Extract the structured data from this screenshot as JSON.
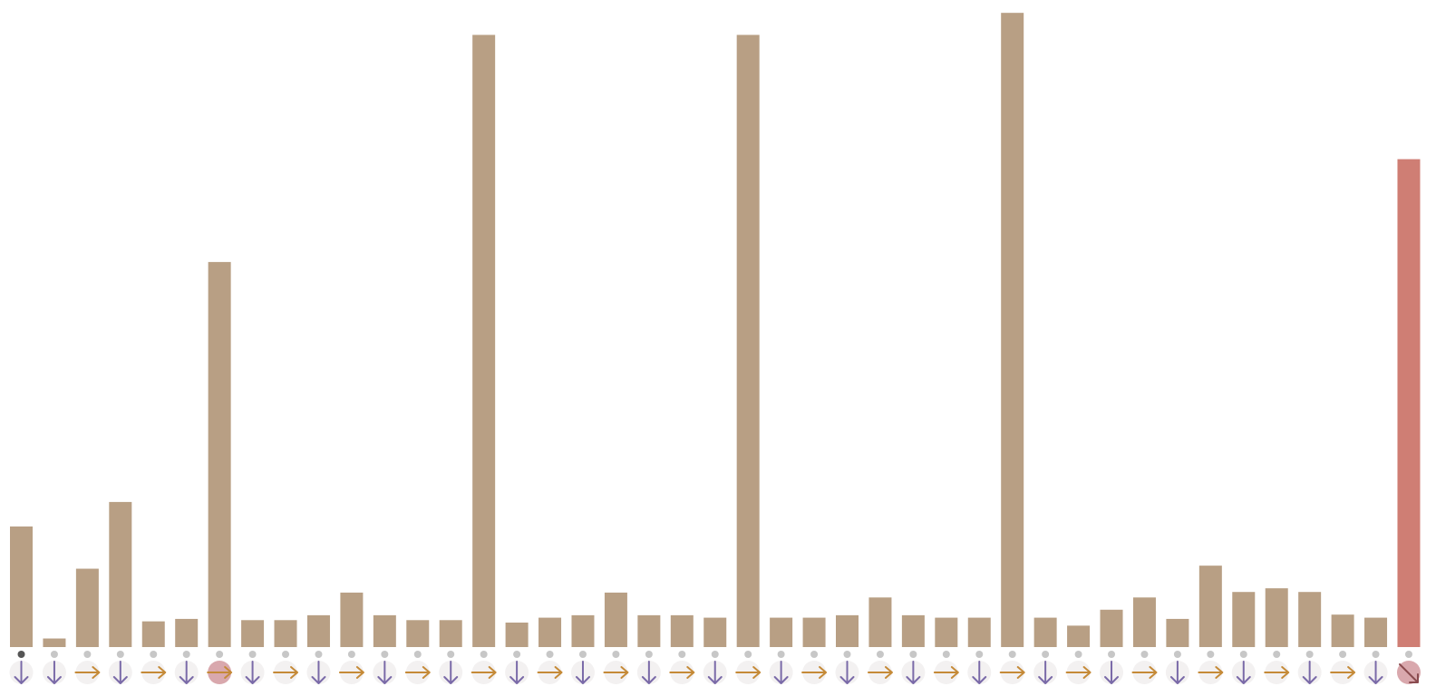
{
  "chart_data": {
    "type": "bar",
    "ylim": [
      0,
      100
    ],
    "grid": false,
    "legend": "none",
    "values": [
      19.7,
      1.4,
      12.8,
      23.7,
      4.2,
      4.6,
      62.9,
      4.4,
      4.4,
      5.2,
      8.9,
      5.2,
      4.4,
      4.4,
      100.0,
      4.0,
      4.8,
      5.2,
      8.9,
      5.2,
      5.2,
      4.8,
      100.0,
      4.8,
      4.8,
      5.2,
      8.1,
      5.2,
      4.8,
      4.8,
      103.6,
      4.8,
      3.5,
      6.1,
      8.1,
      4.6,
      13.3,
      9.0,
      9.6,
      9.0,
      5.3,
      4.8,
      79.7
    ],
    "highlight_index": 42,
    "markers": {
      "dots": [
        "dark",
        "light",
        "light",
        "light",
        "light",
        "light",
        "light",
        "light",
        "light",
        "light",
        "light",
        "light",
        "light",
        "light",
        "light",
        "light",
        "light",
        "light",
        "light",
        "light",
        "light",
        "light",
        "light",
        "light",
        "light",
        "light",
        "light",
        "light",
        "light",
        "light",
        "light",
        "light",
        "light",
        "light",
        "light",
        "light",
        "light",
        "light",
        "light",
        "light",
        "light",
        "light",
        "light"
      ],
      "arrows": [
        "down",
        "down",
        "right",
        "down",
        "right",
        "down",
        "right",
        "down",
        "right",
        "down",
        "right",
        "down",
        "right",
        "down",
        "right",
        "down",
        "right",
        "down",
        "right",
        "down",
        "right",
        "down",
        "right",
        "down",
        "right",
        "down",
        "right",
        "down",
        "right",
        "down",
        "right",
        "down",
        "right",
        "down",
        "right",
        "down",
        "right",
        "down",
        "right",
        "down",
        "right",
        "down",
        "down-right"
      ],
      "arrow_highlight": [
        6,
        42
      ]
    },
    "colors": {
      "bar": "#b89f84",
      "bar_highlight": "#cf7e74",
      "arrow_down": "#7a6aa8",
      "arrow_right": "#c58a37",
      "arrow_diag": "#8a4b4f",
      "dot_dark": "#555555",
      "dot_light": "#c7c7c7",
      "arrow_bg": "#f3f1f1",
      "arrow_bg_highlight": "#d9a8ad"
    }
  }
}
